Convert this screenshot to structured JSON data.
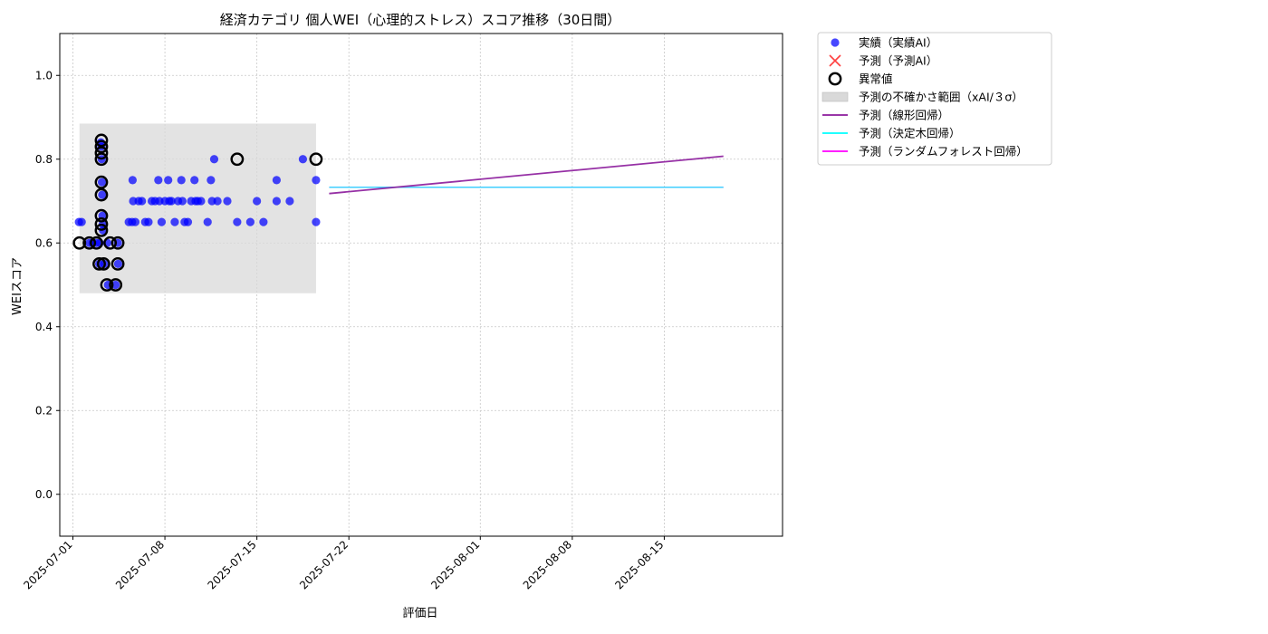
{
  "chart_data": {
    "type": "scatter",
    "title": "経済カテゴリ 個人WEI（心理的ストレス）スコア推移（30日間）",
    "xlabel": "評価日",
    "ylabel": "WEIスコア",
    "xlim": [
      "2025-06-30",
      "2025-08-24"
    ],
    "ylim": [
      -0.1,
      1.1
    ],
    "yticks": [
      0.0,
      0.2,
      0.4,
      0.6,
      0.8,
      1.0
    ],
    "ytick_labels": [
      "0.0",
      "0.2",
      "0.4",
      "0.6",
      "0.8",
      "1.0"
    ],
    "xticks": [
      "2025-07-01",
      "2025-07-08",
      "2025-07-15",
      "2025-07-22",
      "2025-08-01",
      "2025-08-08",
      "2025-08-15"
    ],
    "grid": true,
    "legend_position": "outside top-right",
    "legend": [
      {
        "key": "actual",
        "label": "実績（実績AI）",
        "marker": "dot",
        "color": "#0000ff"
      },
      {
        "key": "predicted",
        "label": "予測（予測AI）",
        "marker": "x",
        "color": "#ff0000"
      },
      {
        "key": "anomaly",
        "label": "異常値",
        "marker": "ring",
        "color": "#000000"
      },
      {
        "key": "band",
        "label": "予測の不確かさ範囲（xAI/３σ）",
        "marker": "patch",
        "color": "#d9d9d9"
      },
      {
        "key": "linear",
        "label": "予測（線形回帰）",
        "marker": "line",
        "color": "#8b1a9b"
      },
      {
        "key": "tree",
        "label": "予測（決定木回帰）",
        "marker": "line",
        "color": "#00ffff"
      },
      {
        "key": "forest",
        "label": "予測（ランダムフォレスト回帰）",
        "marker": "line",
        "color": "#ff00ff"
      }
    ],
    "uncertainty_band": {
      "x": [
        "2025-07-01T12:00",
        "2025-07-19T12:00"
      ],
      "y": [
        0.48,
        0.885
      ]
    },
    "actual": [
      [
        "2025-07-01T11:00",
        0.65
      ],
      [
        "2025-07-01T16:00",
        0.65
      ],
      [
        "2025-07-02T06:00",
        0.6
      ],
      [
        "2025-07-02T12:00",
        0.6
      ],
      [
        "2025-07-02T19:00",
        0.6
      ],
      [
        "2025-07-03T00:00",
        0.55
      ],
      [
        "2025-07-03T01:00",
        0.6
      ],
      [
        "2025-07-03T03:00",
        0.84
      ],
      [
        "2025-07-03T04:00",
        0.83
      ],
      [
        "2025-07-03T04:30",
        0.8
      ],
      [
        "2025-07-03T05:00",
        0.745
      ],
      [
        "2025-07-03T05:30",
        0.715
      ],
      [
        "2025-07-03T06:00",
        0.665
      ],
      [
        "2025-07-03T06:30",
        0.645
      ],
      [
        "2025-07-03T07:00",
        0.63
      ],
      [
        "2025-07-03T09:00",
        0.55
      ],
      [
        "2025-07-03T15:00",
        0.6
      ],
      [
        "2025-07-03T16:00",
        0.5
      ],
      [
        "2025-07-04T06:00",
        0.5
      ],
      [
        "2025-07-04T10:00",
        0.6
      ],
      [
        "2025-07-04T10:30",
        0.55
      ],
      [
        "2025-07-05T06:00",
        0.65
      ],
      [
        "2025-07-05T12:00",
        0.65
      ],
      [
        "2025-07-05T13:00",
        0.75
      ],
      [
        "2025-07-05T14:00",
        0.7
      ],
      [
        "2025-07-05T18:00",
        0.65
      ],
      [
        "2025-07-06T00:00",
        0.7
      ],
      [
        "2025-07-06T06:00",
        0.7
      ],
      [
        "2025-07-06T12:00",
        0.65
      ],
      [
        "2025-07-06T18:00",
        0.65
      ],
      [
        "2025-07-07T00:00",
        0.7
      ],
      [
        "2025-07-07T06:00",
        0.7
      ],
      [
        "2025-07-07T12:00",
        0.75
      ],
      [
        "2025-07-07T14:00",
        0.7
      ],
      [
        "2025-07-07T18:00",
        0.65
      ],
      [
        "2025-07-08T00:00",
        0.7
      ],
      [
        "2025-07-08T06:00",
        0.75
      ],
      [
        "2025-07-08T08:00",
        0.7
      ],
      [
        "2025-07-08T12:00",
        0.7
      ],
      [
        "2025-07-08T18:00",
        0.65
      ],
      [
        "2025-07-09T00:00",
        0.7
      ],
      [
        "2025-07-09T06:00",
        0.75
      ],
      [
        "2025-07-09T08:00",
        0.7
      ],
      [
        "2025-07-09T12:00",
        0.65
      ],
      [
        "2025-07-09T18:00",
        0.65
      ],
      [
        "2025-07-10T00:00",
        0.7
      ],
      [
        "2025-07-10T06:00",
        0.75
      ],
      [
        "2025-07-10T08:00",
        0.7
      ],
      [
        "2025-07-10T12:00",
        0.7
      ],
      [
        "2025-07-10T18:00",
        0.7
      ],
      [
        "2025-07-11T06:00",
        0.65
      ],
      [
        "2025-07-11T12:00",
        0.75
      ],
      [
        "2025-07-11T14:00",
        0.7
      ],
      [
        "2025-07-11T18:00",
        0.8
      ],
      [
        "2025-07-12T00:00",
        0.7
      ],
      [
        "2025-07-12T18:00",
        0.7
      ],
      [
        "2025-07-13T12:00",
        0.65
      ],
      [
        "2025-07-14T12:00",
        0.65
      ],
      [
        "2025-07-15T00:00",
        0.7
      ],
      [
        "2025-07-15T12:00",
        0.65
      ],
      [
        "2025-07-16T12:00",
        0.7
      ],
      [
        "2025-07-16T12:00",
        0.75
      ],
      [
        "2025-07-17T12:00",
        0.7
      ],
      [
        "2025-07-18T12:00",
        0.8
      ],
      [
        "2025-07-19T12:00",
        0.75
      ],
      [
        "2025-07-19T12:00",
        0.65
      ]
    ],
    "anomalies": [
      [
        "2025-07-01T12:00",
        0.6
      ],
      [
        "2025-07-02T06:00",
        0.6
      ],
      [
        "2025-07-02T19:00",
        0.6
      ],
      [
        "2025-07-03T00:00",
        0.55
      ],
      [
        "2025-07-03T04:00",
        0.845
      ],
      [
        "2025-07-03T04:00",
        0.83
      ],
      [
        "2025-07-03T04:00",
        0.815
      ],
      [
        "2025-07-03T04:00",
        0.8
      ],
      [
        "2025-07-03T04:00",
        0.745
      ],
      [
        "2025-07-03T04:00",
        0.715
      ],
      [
        "2025-07-03T04:00",
        0.665
      ],
      [
        "2025-07-03T04:00",
        0.645
      ],
      [
        "2025-07-03T04:00",
        0.63
      ],
      [
        "2025-07-03T08:00",
        0.55
      ],
      [
        "2025-07-03T20:00",
        0.6
      ],
      [
        "2025-07-03T14:00",
        0.5
      ],
      [
        "2025-07-04T06:00",
        0.5
      ],
      [
        "2025-07-04T10:00",
        0.6
      ],
      [
        "2025-07-04T10:00",
        0.55
      ],
      [
        "2025-07-13T12:00",
        0.8
      ],
      [
        "2025-07-19T12:00",
        0.8
      ]
    ],
    "predictions": {
      "x": [
        "2025-07-20T12:00",
        "2025-08-19T12:00"
      ],
      "linear": [
        0.718,
        0.807
      ],
      "tree": [
        0.733,
        0.733
      ],
      "forest": [
        0.733,
        0.733
      ]
    }
  }
}
